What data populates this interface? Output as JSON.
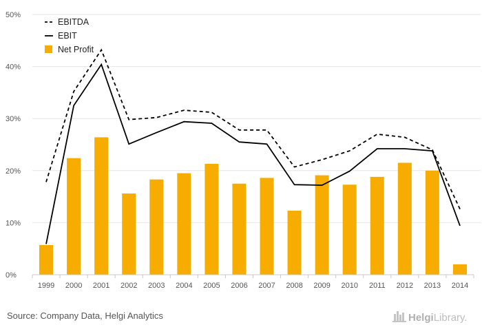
{
  "chart_data": {
    "type": "bar",
    "title": "",
    "xlabel": "",
    "ylabel": "",
    "categories": [
      "1999",
      "2000",
      "2001",
      "2002",
      "2003",
      "2004",
      "2005",
      "2006",
      "2007",
      "2008",
      "2009",
      "2010",
      "2011",
      "2012",
      "2013",
      "2014"
    ],
    "ylim": [
      0,
      50
    ],
    "yticks": [
      0,
      10,
      20,
      30,
      40,
      50
    ],
    "ytick_suffix": "%",
    "grid": true,
    "legend_position": "top-left",
    "series": [
      {
        "name": "EBITDA",
        "kind": "line",
        "style": "dashed",
        "color": "#000000",
        "values": [
          17.8,
          35.2,
          43.2,
          29.8,
          30.2,
          31.6,
          31.2,
          27.8,
          27.8,
          20.7,
          22.1,
          23.8,
          27.0,
          26.4,
          24.0,
          12.6
        ]
      },
      {
        "name": "EBIT",
        "kind": "line",
        "style": "solid",
        "color": "#000000",
        "values": [
          5.9,
          32.5,
          40.4,
          25.1,
          27.3,
          29.4,
          29.1,
          25.5,
          25.1,
          17.3,
          17.2,
          19.9,
          24.2,
          24.2,
          23.8,
          9.4
        ]
      },
      {
        "name": "Net Profit",
        "kind": "bar",
        "color": "#f7ad00",
        "values": [
          5.7,
          22.4,
          26.4,
          15.6,
          18.3,
          19.5,
          21.3,
          17.5,
          18.6,
          12.3,
          19.1,
          17.3,
          18.8,
          21.5,
          20.0,
          2.0
        ]
      }
    ]
  },
  "footer": {
    "source": "Source: Company Data, Helgi Analytics",
    "brand_bold": "Helgi",
    "brand_rest": "Library."
  }
}
